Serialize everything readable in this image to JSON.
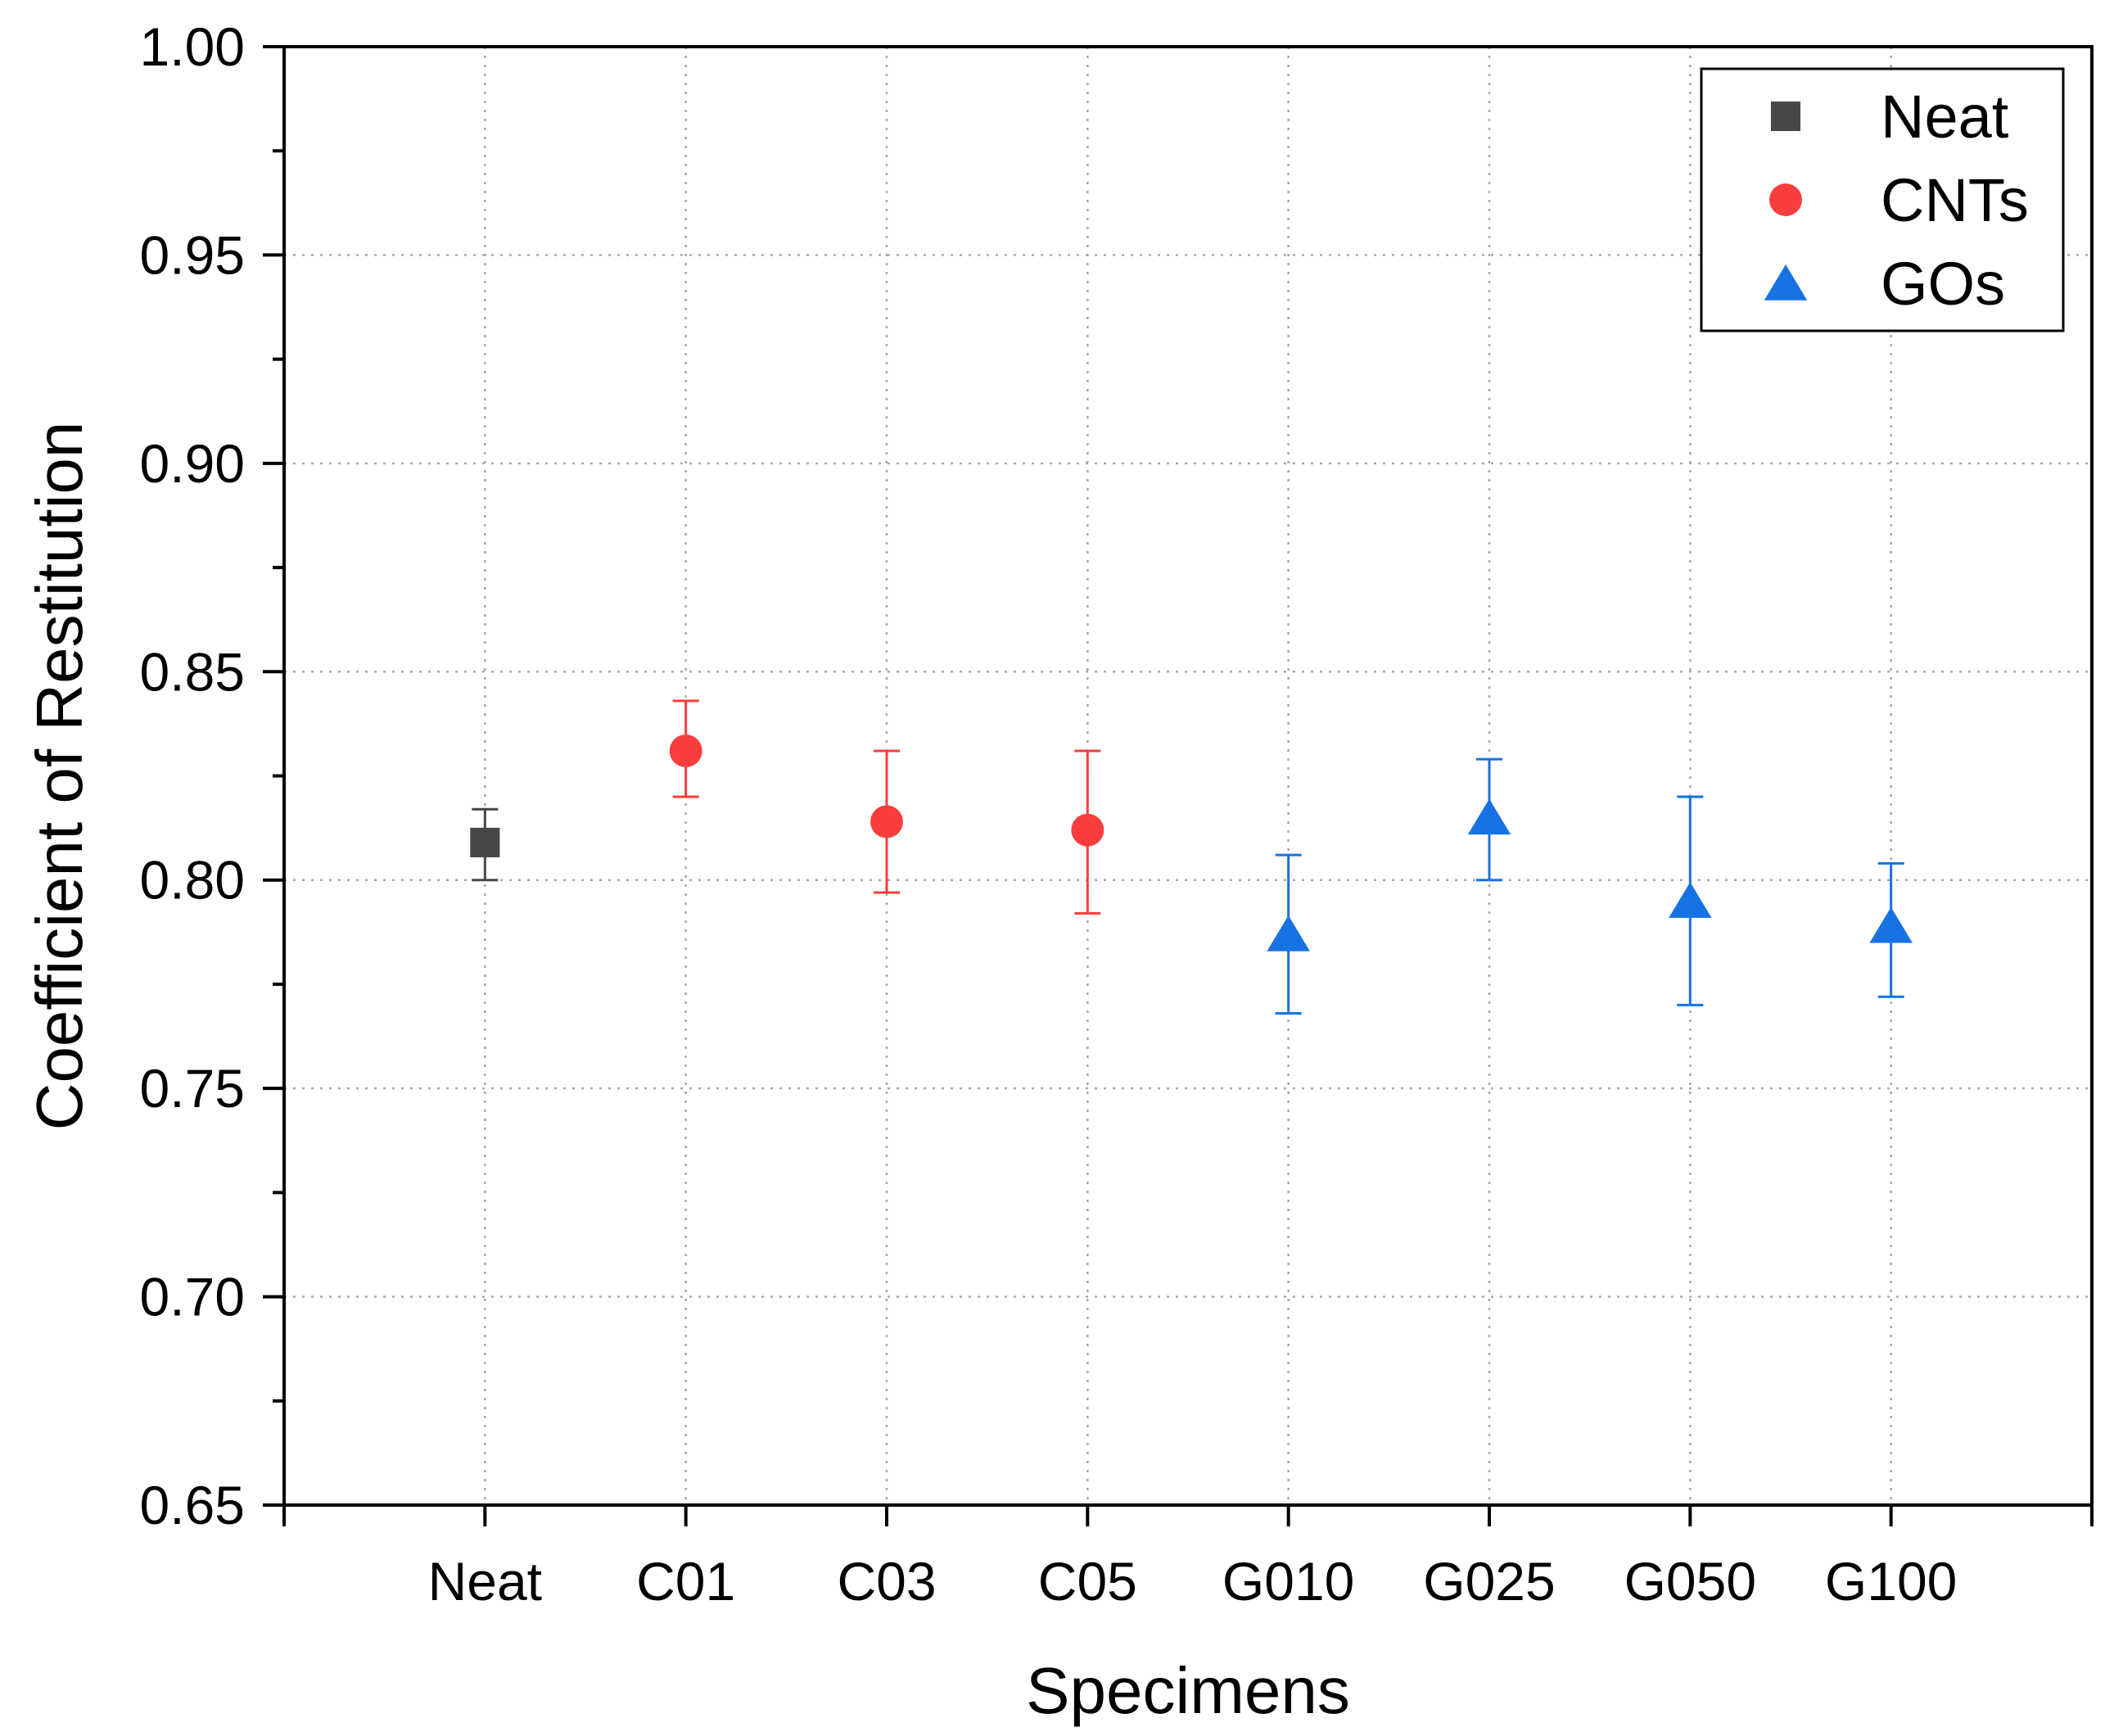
{
  "chart_data": {
    "type": "scatter",
    "title": "",
    "xlabel": "Specimens",
    "ylabel": "Coefficient of Restitution",
    "ylim": [
      0.65,
      1.0
    ],
    "yticks": [
      "0.65",
      "0.70",
      "0.75",
      "0.80",
      "0.85",
      "0.90",
      "0.95",
      "1.00"
    ],
    "categories": [
      "Neat",
      "C01",
      "C03",
      "C05",
      "G010",
      "G025",
      "G050",
      "G100"
    ],
    "grid": true,
    "legend_position": "top-right",
    "series": [
      {
        "name": "Neat",
        "marker": "square",
        "color": "#474747",
        "points": [
          {
            "x": "Neat",
            "y": 0.809,
            "err_low": 0.8,
            "err_high": 0.817
          }
        ]
      },
      {
        "name": "CNTs",
        "marker": "circle",
        "color": "#f93d3d",
        "points": [
          {
            "x": "C01",
            "y": 0.831,
            "err_low": 0.82,
            "err_high": 0.843
          },
          {
            "x": "C03",
            "y": 0.814,
            "err_low": 0.797,
            "err_high": 0.831
          },
          {
            "x": "C05",
            "y": 0.812,
            "err_low": 0.792,
            "err_high": 0.831
          }
        ]
      },
      {
        "name": "GOs",
        "marker": "triangle",
        "color": "#1772e3",
        "points": [
          {
            "x": "G010",
            "y": 0.787,
            "err_low": 0.768,
            "err_high": 0.806
          },
          {
            "x": "G025",
            "y": 0.815,
            "err_low": 0.8,
            "err_high": 0.829
          },
          {
            "x": "G050",
            "y": 0.795,
            "err_low": 0.77,
            "err_high": 0.82
          },
          {
            "x": "G100",
            "y": 0.789,
            "err_low": 0.772,
            "err_high": 0.804
          }
        ]
      }
    ]
  }
}
